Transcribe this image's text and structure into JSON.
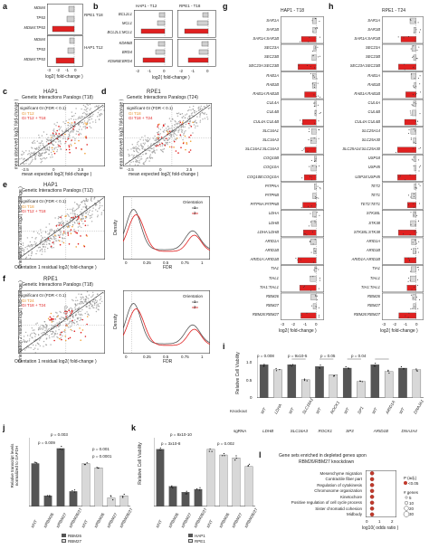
{
  "panel_letters": [
    "a",
    "b",
    "c",
    "d",
    "e",
    "f",
    "g",
    "h",
    "i",
    "j",
    "k",
    "l"
  ],
  "panel_a": {
    "rows": [
      "MDM4",
      "TP53",
      "MDM4:TP53",
      "MDM4",
      "TP53",
      "MDM4:TP53"
    ],
    "groups": [
      "RPE1 T18",
      "HAP1 T12"
    ],
    "xlabel": "log2( fold-change )",
    "ticks": [
      "-3",
      "-2",
      "-1",
      "0"
    ]
  },
  "panel_b": {
    "rows": [
      "BCL2L1",
      "MCL1",
      "BCL2L1:MCL1",
      "KDM6B",
      "BRD4",
      "KDM6B:BRD4"
    ],
    "titles": [
      "HAP1 - T12",
      "RPE1 - T18"
    ],
    "xlabel": "log2( fold-change )",
    "ticks": [
      "-2",
      "-1",
      "0"
    ]
  },
  "panel_c": {
    "title1": "HAP1",
    "title2": "Genetic Interactions Paralogs (T18)",
    "legend_title": "significant GI (FDR < 0.1)",
    "legend_items": [
      "GI T12",
      "GI T12 + T18"
    ],
    "xlabel": "mean expected log2( fold-change )",
    "ylabel": "mean observed log2( fold-change )",
    "ticks": [
      "-2.5",
      "0",
      "2.5"
    ]
  },
  "panel_d": {
    "title1": "RPE1",
    "title2": "Genetic Interactions Paralogs (T24)",
    "legend_title": "significant GI (FDR < 0.1)",
    "legend_items": [
      "GI T18",
      "GI T18 + T24"
    ],
    "xlabel": "mean expected log2( fold-change )",
    "ylabel": "mean observed log2( fold-change )",
    "ticks": [
      "-2.5",
      "0",
      "2.5"
    ]
  },
  "panel_e": {
    "title1": "HAP1",
    "title2": "Genetic Interactions Paralogs (T12)",
    "legend_title": "significant GI (FDR < 0.1)",
    "legend_items": [
      "GI T18",
      "GI T12 + T18"
    ],
    "xlabel": "Orientation 1 residual log2( fold-change )",
    "ylabel": "Orientation 2 residual log2( fold-change )",
    "density_legend_title": "Orientation",
    "density_legend": [
      "1",
      "2"
    ],
    "density_xlabel": "FDR",
    "density_ylabel": "Density",
    "density_ticks": [
      "0",
      "0.25",
      "0.5",
      "0.75",
      "1"
    ]
  },
  "panel_f": {
    "title1": "RPE1",
    "title2": "Genetic Interactions Paralogs (T18)",
    "legend_title": "significant GI (FDR < 0.1)",
    "legend_items": [
      "GI T24",
      "GI T18 + T24"
    ],
    "xlabel": "Orientation 1 residual log2( fold-change )",
    "ylabel": "Orientation 2 residual log2( fold-change )",
    "density_legend_title": "Orientation",
    "density_legend": [
      "1",
      "2"
    ],
    "density_xlabel": "FDR",
    "density_ylabel": "Density",
    "density_ticks": [
      "0",
      "0.25",
      "0.5",
      "0.75",
      "1"
    ]
  },
  "panel_g": {
    "title": "HAP1 - T18",
    "xlabel": "log2( fold-change )",
    "ticks": [
      "-3",
      "-2",
      "-1",
      "0"
    ],
    "rows": [
      "SAR1A",
      "SAR1B",
      "SAR1A:SAR1B",
      "SEC23A",
      "SEC23B",
      "SEC23A:SEC23B",
      "RAB1A",
      "RAB1B",
      "RAB1A:RAB1B",
      "CUL4A",
      "CUL4B",
      "CUL4A:CUL4B",
      "SLC16A1",
      "SLC16A3",
      "SLC16A1:SLC16A3",
      "COQ10B",
      "COQ10A",
      "COQ10B:COQ10A",
      "PITPNA",
      "PITPNB",
      "PITPNA:PITPNB",
      "LDHA",
      "LDHB",
      "LDHA:LDHB",
      "ARID1A",
      "ARID1B",
      "ARID1A:ARID1B",
      "TIA1",
      "TIAL1",
      "TIA1:TIAL1",
      "RBM26",
      "RBM27",
      "RBM26:RBM27"
    ]
  },
  "panel_h": {
    "title": "RPE1 - T24",
    "xlabel": "log2( fold-change )",
    "ticks": [
      "-3",
      "-2",
      "-1",
      "0"
    ],
    "rows": [
      "SAR1A",
      "SAR1B",
      "SAR1A:SAR1B",
      "SEC23A",
      "SEC23B",
      "SEC23A:SEC23B",
      "RAB1A",
      "RAB1B",
      "RAB1A:RAB1B",
      "CUL4A",
      "CUL4B",
      "CUL4A:CUL4B",
      "SLC25A14",
      "SLC25A30",
      "SLC25A14:SLC25A30",
      "USP18",
      "USP45",
      "USP18:USP45",
      "TET2",
      "TET1",
      "TET2:TET1",
      "STK38L",
      "STK38",
      "STK38L:STK38",
      "ARID1A",
      "ARID1B",
      "ARID1A:ARID1B",
      "TIA1",
      "TIAL1",
      "TIA1:TIAL1",
      "RBM26",
      "RBM27",
      "RBM26:RBM27"
    ]
  },
  "panel_i": {
    "ylabel": "Relative Cell Viability",
    "yticks": [
      "0",
      "0.5",
      "1.0"
    ],
    "pvalues": [
      "p = 0.008",
      "p = 9x10-5",
      "p = 0.05",
      "p = 0.04"
    ],
    "knockout_label": "Knockout",
    "knockouts": [
      "WT",
      "LDHA",
      "WT",
      "SLC16A1",
      "WT",
      "ROCK1",
      "WT",
      "SP1",
      "WT",
      "ARID1A",
      "WT",
      "DNAJA1"
    ],
    "sgrna_label": "sgRNA",
    "sgrnas": [
      "LDHB",
      "SLC16A3",
      "ROCK1",
      "SP3",
      "ARID1B",
      "DNAJA4"
    ],
    "chart_data": {
      "type": "bar",
      "categories": [
        "WT",
        "LDHA",
        "WT",
        "SLC16A1",
        "WT",
        "ROCK1",
        "WT",
        "SP1",
        "WT",
        "ARID1A",
        "WT",
        "DNAJA1"
      ],
      "values": [
        1.0,
        0.85,
        1.0,
        0.55,
        0.95,
        0.7,
        0.9,
        0.5,
        1.0,
        0.8,
        0.9,
        0.85
      ],
      "ylim": [
        0,
        1.2
      ]
    }
  },
  "panel_j": {
    "ylabel": "Relative transcript levels normalized to GAPDH",
    "pvalues": [
      "p = 0.003",
      "p = 0.009",
      "p = 0.001",
      "p = 0.0001"
    ],
    "categories": [
      "siNT",
      "siRBM26",
      "siRBM27",
      "siRBM26/27",
      "siNT",
      "siRBM26",
      "siRBM27",
      "siRBM26/27"
    ],
    "legend": [
      "RBM26",
      "RBM27"
    ],
    "yticks": [
      "0",
      "0.5",
      "1",
      "1.5"
    ],
    "chart_data": {
      "type": "bar",
      "series": [
        {
          "name": "RBM26",
          "values": [
            1.0,
            0.25,
            1.35,
            0.35
          ]
        },
        {
          "name": "RBM27",
          "values": [
            1.0,
            0.9,
            0.2,
            0.25
          ]
        }
      ],
      "ylim": [
        0,
        1.6
      ]
    }
  },
  "panel_k": {
    "ylabel": "Relative Cell Viability",
    "pvalues": [
      "p = 8x10-10",
      "p = 3x10-8",
      "p = 0.002"
    ],
    "categories": [
      "siNT",
      "siRBM26",
      "siRBM27",
      "siRBM26/27",
      "siNT",
      "siRBM26",
      "siRBM27",
      "siRBM26/27"
    ],
    "legend": [
      "HAP1",
      "RPE1"
    ],
    "yticks": [
      "0",
      "0.5",
      "1.0"
    ],
    "chart_data": {
      "type": "bar",
      "series": [
        {
          "name": "HAP1",
          "values": [
            1.0,
            0.35,
            0.25,
            0.3
          ]
        },
        {
          "name": "RPE1",
          "values": [
            1.0,
            0.9,
            0.85,
            0.7
          ]
        }
      ],
      "ylim": [
        0,
        1.2
      ]
    }
  },
  "panel_l": {
    "title1": "Gene sets enriched in depleted genes upon",
    "title2": "RBM26/RBM27 knockdown",
    "terms": [
      "Mesenchyme migration",
      "Contractile fiber part",
      "Regulation of cytokinesis",
      "Chromosome organization",
      "Kinetochore",
      "Positive regulation of cell cycle process",
      "Sister chromatid cohesion",
      "Midbody"
    ],
    "xlabel": "log10( odds ratio )",
    "ticks": [
      "0",
      "1",
      "2"
    ],
    "legend_p_title": "P (adj.)",
    "legend_p_value": "<0.05",
    "legend_size_title": "# genes",
    "legend_sizes": [
      "5",
      "10",
      "20",
      "30"
    ],
    "chart_data": {
      "type": "scatter",
      "x": [
        0.3,
        0.3,
        0.3,
        0.3,
        0.3,
        0.3,
        0.3,
        0.3
      ],
      "categories": [
        "Mesenchyme migration",
        "Contractile fiber part",
        "Regulation of cytokinesis",
        "Chromosome organization",
        "Kinetochore",
        "Positive regulation of cell cycle process",
        "Sister chromatid cohesion",
        "Midbody"
      ]
    }
  },
  "colors": {
    "red": "#e02020",
    "orange": "#f2a23a",
    "grey": "#8a8a8a",
    "dark_bar": "#555555",
    "light_bar": "#d8d8d8"
  }
}
